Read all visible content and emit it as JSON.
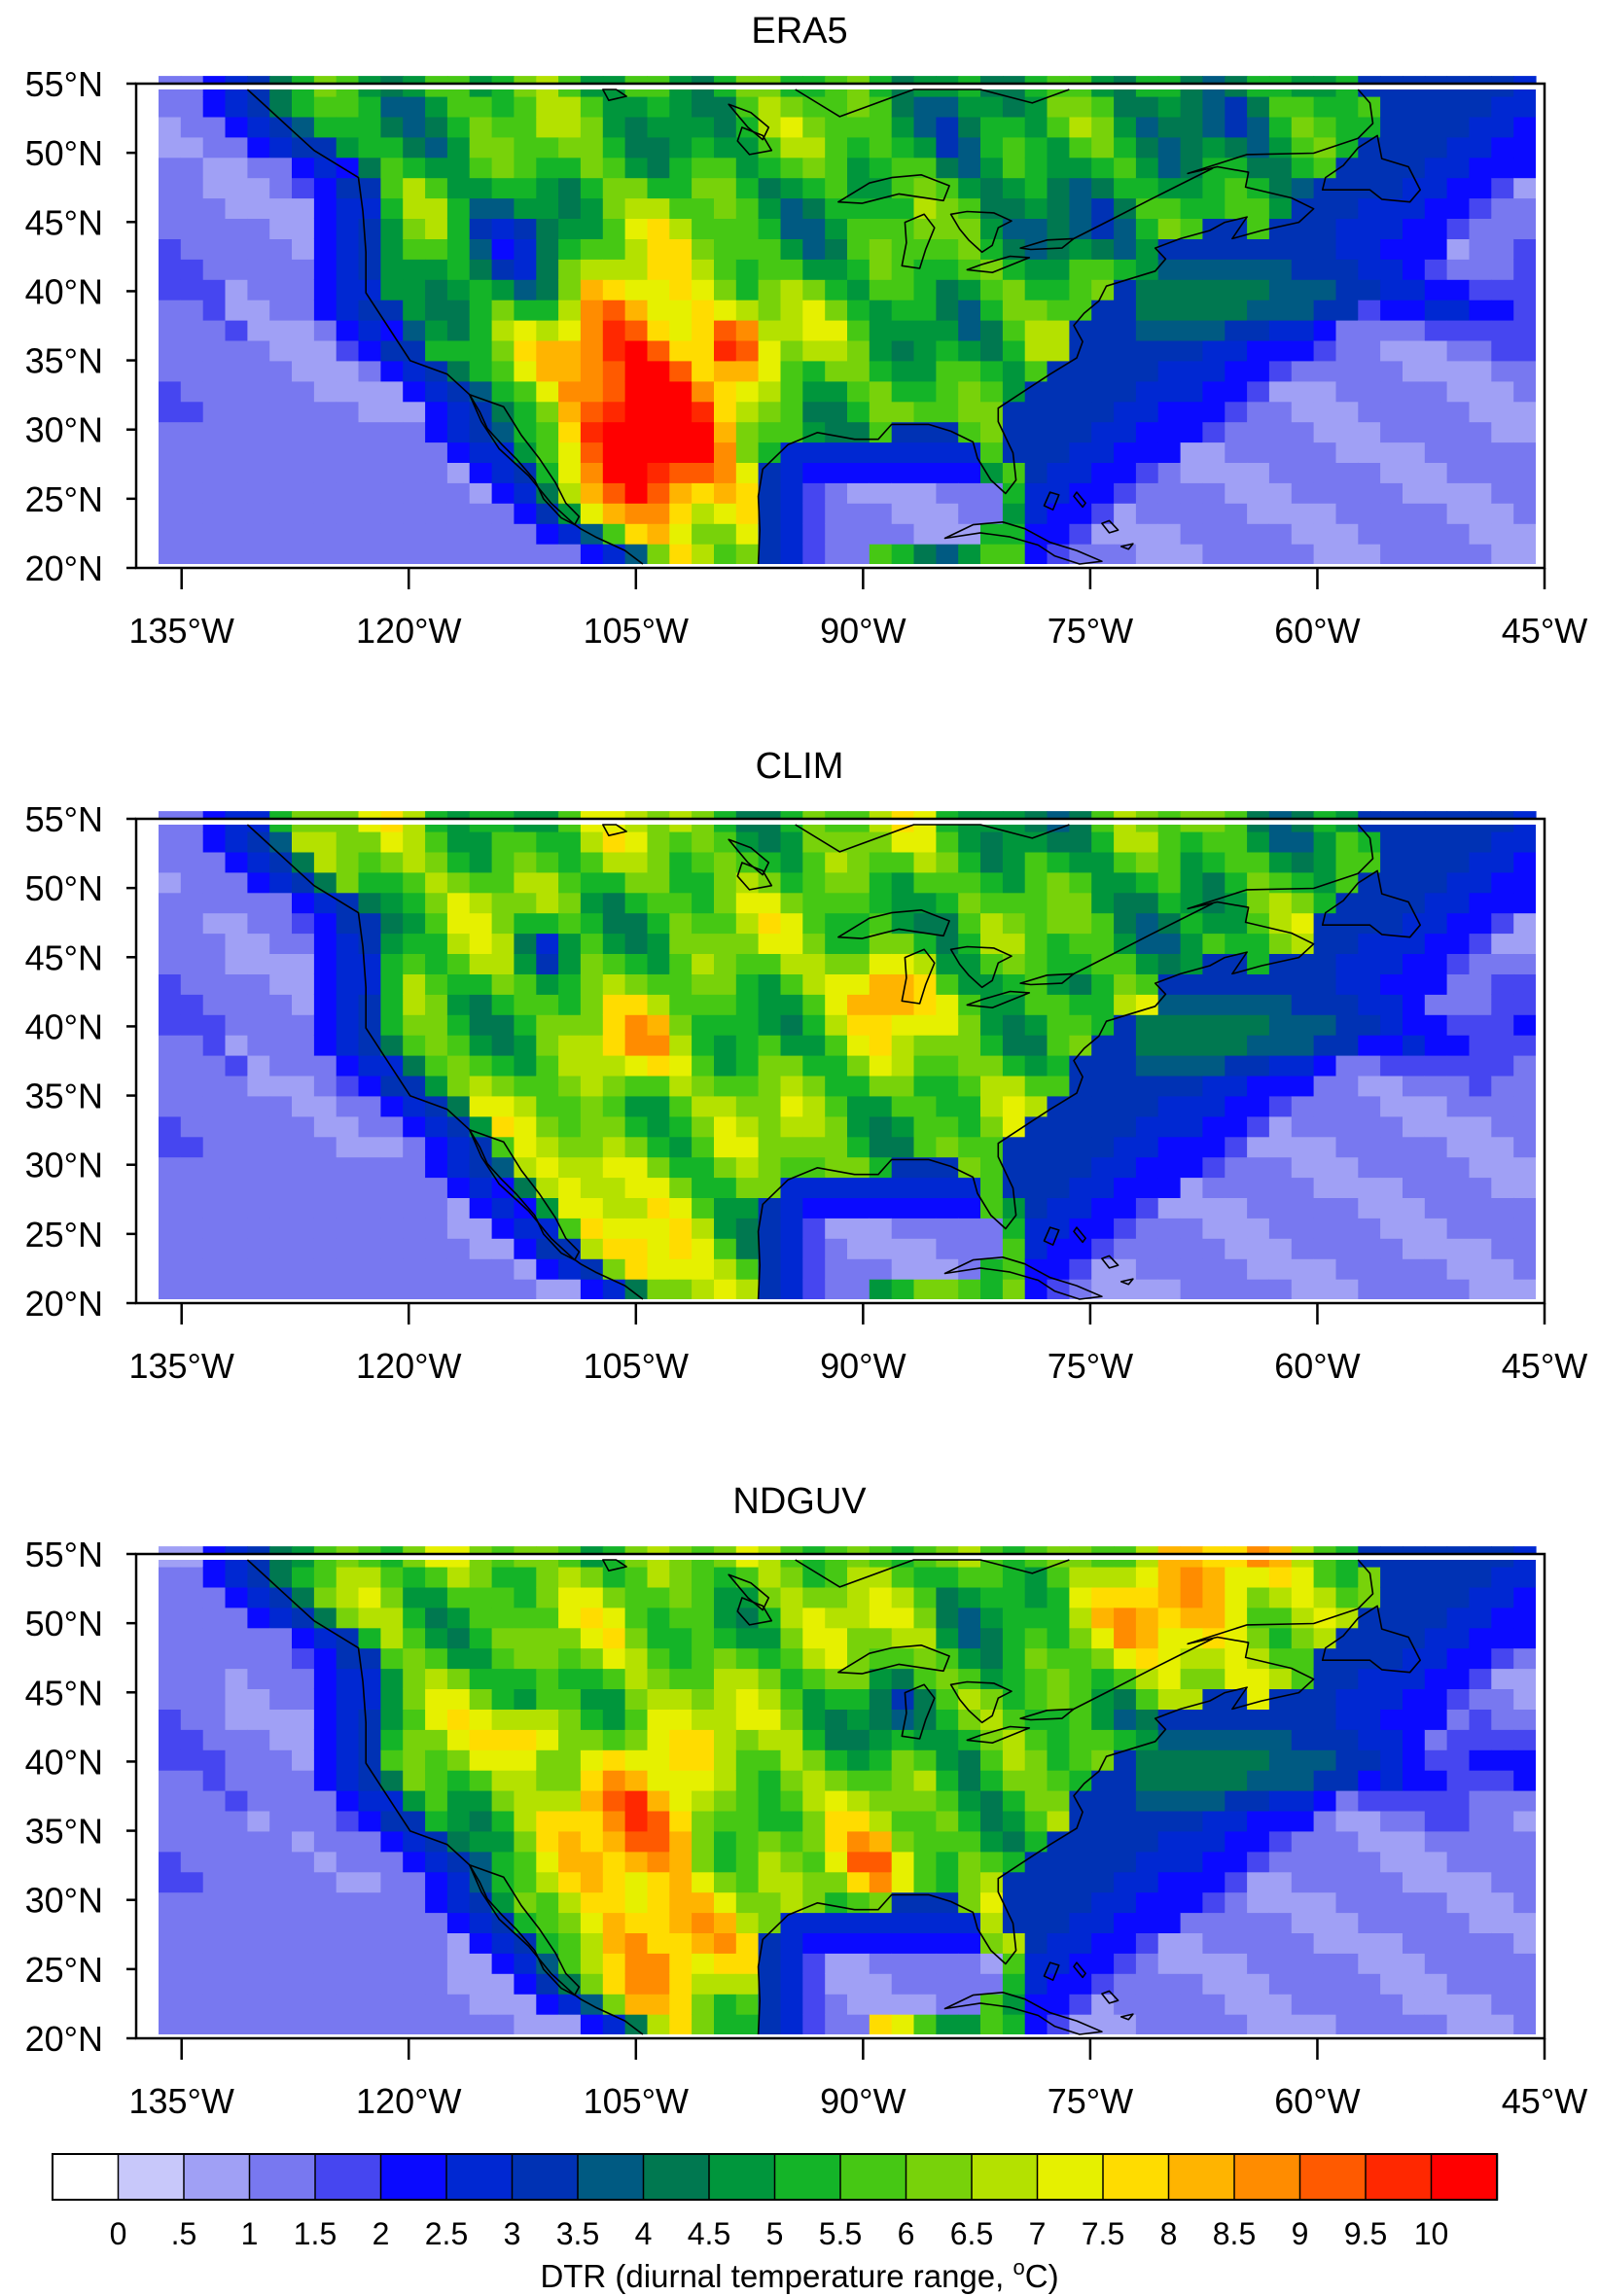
{
  "panels": [
    {
      "title": "ERA5",
      "variant": 0
    },
    {
      "title": "CLIM",
      "variant": 1
    },
    {
      "title": "NDGUV",
      "variant": 2
    }
  ],
  "lat_ticks": [
    "20°N",
    "25°N",
    "30°N",
    "35°N",
    "40°N",
    "45°N",
    "50°N",
    "55°N"
  ],
  "lon_ticks": [
    "135°W",
    "120°W",
    "105°W",
    "90°W",
    "75°W",
    "60°W",
    "45°W"
  ],
  "map_extent": {
    "lon": [
      -138,
      -45
    ],
    "lat": [
      20,
      55
    ]
  },
  "colorbar": {
    "label": "DTR (diurnal temperature range, ",
    "unit_sup": "o",
    "unit_tail": "C)",
    "ticks": [
      "0",
      ".5",
      "1",
      "1.5",
      "2",
      "2.5",
      "3",
      "3.5",
      "4",
      "4.5",
      "5",
      "5.5",
      "6",
      "6.5",
      "7",
      "7.5",
      "8",
      "8.5",
      "9",
      "9.5",
      "10"
    ],
    "colors": [
      "#ffffff",
      "#c8c8fa",
      "#a0a0f5",
      "#7878f0",
      "#4646f0",
      "#0a0aff",
      "#0028d2",
      "#0032b4",
      "#005a82",
      "#007850",
      "#00963c",
      "#14b428",
      "#46c814",
      "#78d20a",
      "#b4e100",
      "#e6f000",
      "#ffdc00",
      "#ffb400",
      "#ff8c00",
      "#ff5a00",
      "#ff2800",
      "#ff0000"
    ]
  }
}
